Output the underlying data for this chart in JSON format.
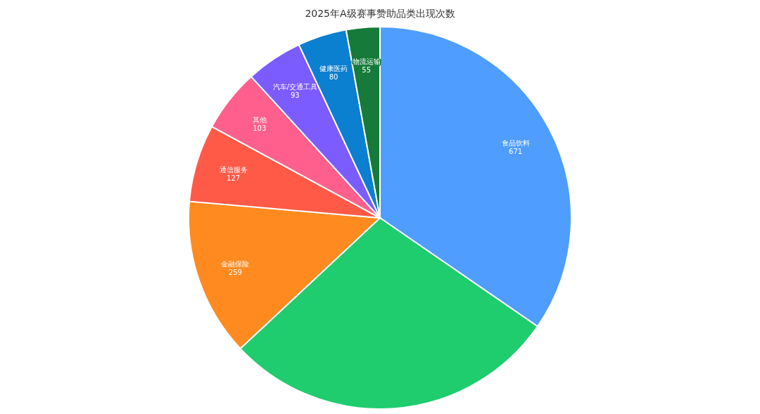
{
  "chart_data": {
    "type": "pie",
    "title": "2025年A级赛事赞助品类出现次数",
    "categories": [
      "食品饮料",
      null,
      "金融保险",
      "通信服务",
      "其他",
      "汽车/交通工具",
      "健康医药",
      "物流运输"
    ],
    "values": [
      671,
      551,
      259,
      127,
      103,
      93,
      80,
      55
    ],
    "value_labels": [
      "671",
      null,
      "259",
      "127",
      "103",
      "93",
      "80",
      "55"
    ],
    "colors": [
      "#4f9dff",
      "#1fcc6e",
      "#ff8a1f",
      "#ff5a48",
      "#ff5f8c",
      "#7b5cff",
      "#0b7fd0",
      "#167a3a"
    ]
  }
}
